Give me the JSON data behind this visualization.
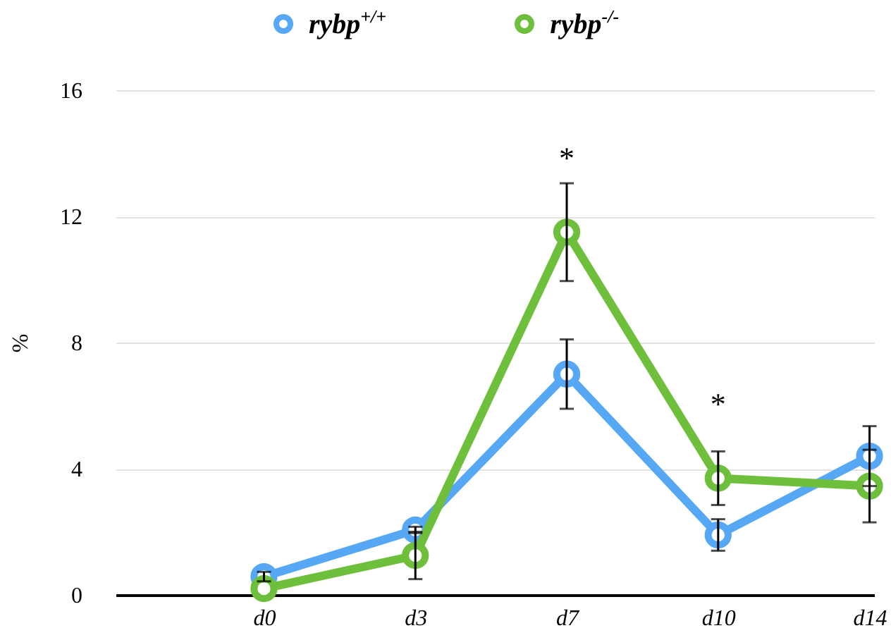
{
  "chart_data": {
    "type": "line",
    "ylabel": "%",
    "categories": [
      "d0",
      "d3",
      "d7",
      "d10",
      "d14"
    ],
    "series": [
      {
        "name": "rybp$^{+/+}$",
        "color": "#56a8f5",
        "values": [
          0.58,
          2.06,
          7.0,
          1.9,
          4.4
        ],
        "errors": [
          0.15,
          0.1,
          1.1,
          0.5,
          0.95
        ]
      },
      {
        "name": "rybp$^{-/-}$",
        "color": "#6dbf3c",
        "values": [
          0.2,
          1.25,
          11.5,
          3.7,
          3.45
        ],
        "errors": [
          null,
          0.75,
          1.55,
          0.85,
          1.15
        ]
      }
    ],
    "ylim": [
      0,
      16
    ],
    "yticks": [
      0,
      4,
      8,
      12,
      16
    ],
    "grid": "y",
    "legend": "top",
    "marker": "circle",
    "line_style": "solid",
    "annotations": [
      {
        "text": "*",
        "x": "d7",
        "y": 11.5
      },
      {
        "text": "*",
        "x": "d10",
        "y": 3.7
      }
    ]
  }
}
